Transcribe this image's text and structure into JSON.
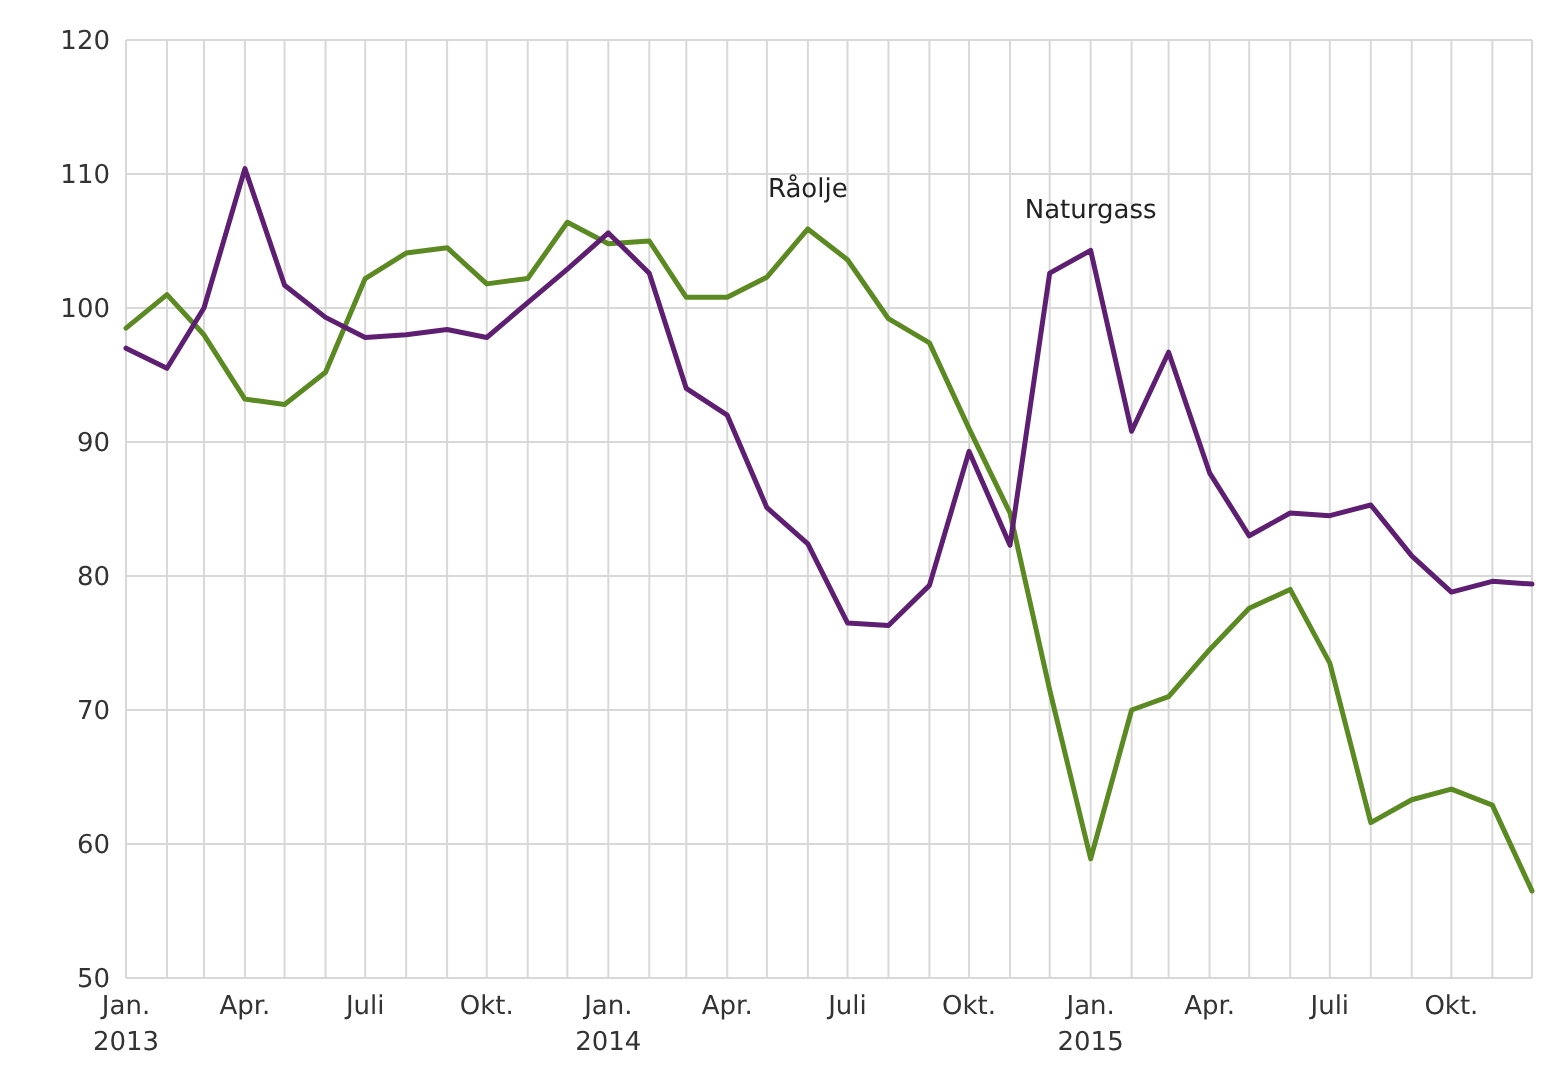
{
  "chart_data": {
    "type": "line",
    "x": [
      "2013-01",
      "2013-02",
      "2013-03",
      "2013-04",
      "2013-05",
      "2013-06",
      "2013-07",
      "2013-08",
      "2013-09",
      "2013-10",
      "2013-11",
      "2013-12",
      "2014-01",
      "2014-02",
      "2014-03",
      "2014-04",
      "2014-05",
      "2014-06",
      "2014-07",
      "2014-08",
      "2014-09",
      "2014-10",
      "2014-11",
      "2014-12",
      "2015-01",
      "2015-02",
      "2015-03",
      "2015-04",
      "2015-05",
      "2015-06",
      "2015-07",
      "2015-08",
      "2015-09",
      "2015-10",
      "2015-11",
      "2015-12"
    ],
    "series": [
      {
        "color": "#5b8a22",
        "values": [
          98.5,
          101,
          98,
          93.2,
          92.8,
          95.2,
          102.2,
          104.1,
          104.5,
          101.8,
          102.2,
          106.4,
          104.8,
          105,
          100.8,
          100.8,
          102.3,
          105.9,
          103.6,
          99.2,
          97.4,
          91,
          84.7,
          71.5,
          58.9,
          70,
          71,
          74.5,
          77.6,
          79,
          73.5,
          61.6,
          63.3,
          64.1,
          62.9,
          56.5
        ]
      },
      {
        "color": "#5e1f72",
        "values": [
          97,
          95.5,
          100,
          110.4,
          101.7,
          99.3,
          97.8,
          98,
          98.4,
          97.8,
          100.4,
          102.9,
          105.6,
          102.6,
          94,
          92,
          85.1,
          82.4,
          76.5,
          76.3,
          79.3,
          89.3,
          82.3,
          102.6,
          104.3,
          90.8,
          96.7,
          87.7,
          83,
          84.7,
          84.5,
          85.3,
          81.5,
          78.8,
          79.6,
          79.4
        ]
      }
    ],
    "annotations": [
      {
        "text": "Råolje",
        "x": "2014-06",
        "y": 105.9
      },
      {
        "text": "Naturgass",
        "x": "2015-01",
        "y": 104.3
      }
    ],
    "xlim": [
      "2013-01",
      "2015-12"
    ],
    "xticks": [
      {
        "value": "2013-01",
        "label": "Jan.\n2013"
      },
      {
        "value": "2013-02",
        "label": null
      },
      {
        "value": "2013-03",
        "label": null
      },
      {
        "value": "2013-04",
        "label": "Apr."
      },
      {
        "value": "2013-05",
        "label": null
      },
      {
        "value": "2013-06",
        "label": null
      },
      {
        "value": "2013-07",
        "label": "Juli"
      },
      {
        "value": "2013-08",
        "label": null
      },
      {
        "value": "2013-09",
        "label": null
      },
      {
        "value": "2013-10",
        "label": "Okt."
      },
      {
        "value": "2013-11",
        "label": null
      },
      {
        "value": "2013-12",
        "label": null
      },
      {
        "value": "2014-01",
        "label": "Jan.\n2014"
      },
      {
        "value": "2014-02",
        "label": null
      },
      {
        "value": "2014-03",
        "label": null
      },
      {
        "value": "2014-04",
        "label": "Apr."
      },
      {
        "value": "2014-05",
        "label": null
      },
      {
        "value": "2014-06",
        "label": null
      },
      {
        "value": "2014-07",
        "label": "Juli"
      },
      {
        "value": "2014-08",
        "label": null
      },
      {
        "value": "2014-09",
        "label": null
      },
      {
        "value": "2014-10",
        "label": "Okt."
      },
      {
        "value": "2014-11",
        "label": null
      },
      {
        "value": "2014-12",
        "label": null
      },
      {
        "value": "2015-01",
        "label": "Jan.\n2015"
      },
      {
        "value": "2015-02",
        "label": null
      },
      {
        "value": "2015-03",
        "label": null
      },
      {
        "value": "2015-04",
        "label": "Apr."
      },
      {
        "value": "2015-05",
        "label": null
      },
      {
        "value": "2015-06",
        "label": null
      },
      {
        "value": "2015-07",
        "label": "Juli"
      },
      {
        "value": "2015-08",
        "label": null
      },
      {
        "value": "2015-09",
        "label": null
      },
      {
        "value": "2015-10",
        "label": "Okt."
      },
      {
        "value": "2015-11",
        "label": null
      },
      {
        "value": "2015-12",
        "label": null
      }
    ],
    "ylim": [
      50,
      120
    ],
    "yticks": [
      50,
      60,
      70,
      80,
      90,
      100,
      110,
      120
    ],
    "grid": true,
    "line_style": "solid",
    "marker": "none"
  }
}
